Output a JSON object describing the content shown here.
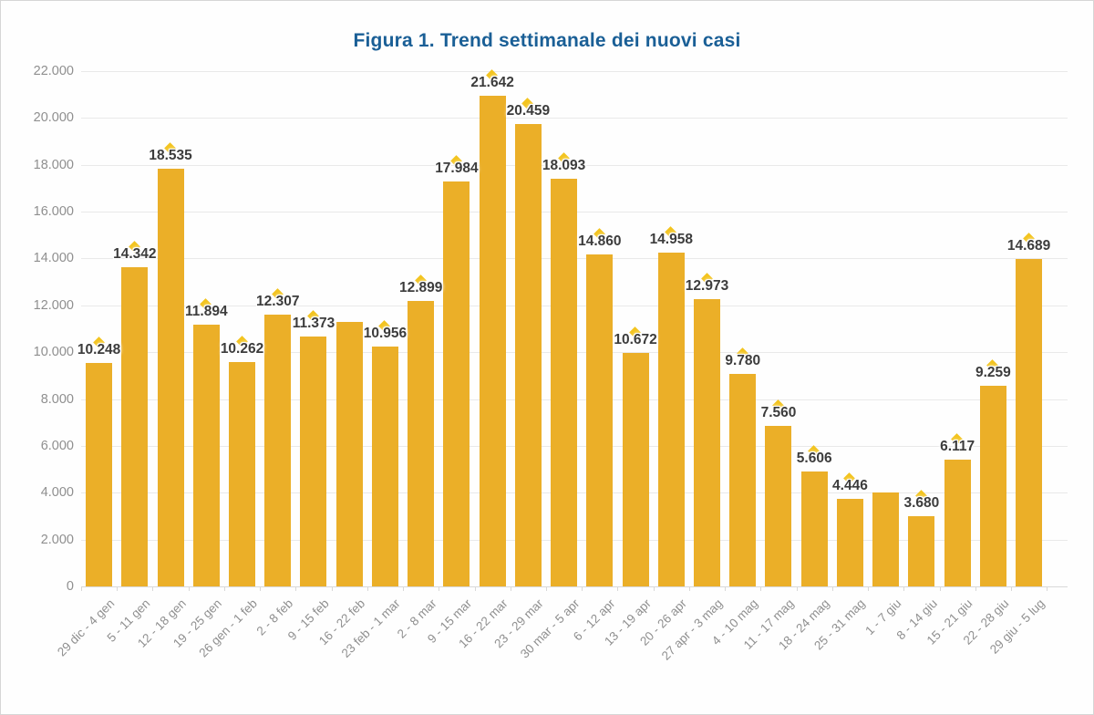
{
  "chart_data": {
    "type": "bar",
    "title": "Figura 1. Trend settimanale dei nuovi casi",
    "categories": [
      "29 dic - 4 gen",
      "5 - 11 gen",
      "12 - 18 gen",
      "19 - 25 gen",
      "26 gen - 1 feb",
      "2 - 8 feb",
      "9 - 15 feb",
      "16 - 22 feb",
      "23 feb - 1 mar",
      "2 - 8 mar",
      "9 - 15 mar",
      "16 - 22 mar",
      "23 - 29 mar",
      "30 mar - 5 apr",
      "6 - 12 apr",
      "13 - 19 apr",
      "20 - 26 apr",
      "27 apr - 3 mag",
      "4 - 10 mag",
      "11 - 17 mag",
      "18 - 24 mag",
      "25 - 31 mag",
      "1 - 7 giu",
      "8 - 14 giu",
      "15 - 21 giu",
      "22 - 28 giu",
      "29 giu - 5 lug"
    ],
    "values": [
      10248,
      14342,
      18535,
      11894,
      10262,
      12307,
      11373,
      12000,
      10956,
      12899,
      17984,
      21642,
      20459,
      18093,
      14860,
      10672,
      14958,
      12973,
      9780,
      7560,
      5606,
      4446,
      4700,
      3680,
      6117,
      9259,
      14689
    ],
    "data_labels": [
      "10.248",
      "14.342",
      "18.535",
      "11.894",
      "10.262",
      "12.307",
      "11.373",
      "",
      "10.956",
      "12.899",
      "17.984",
      "21.642",
      "20.459",
      "18.093",
      "14.860",
      "10.672",
      "14.958",
      "12.973",
      "9.780",
      "7.560",
      "5.606",
      "4.446",
      "",
      "3.680",
      "6.117",
      "9.259",
      "14.689"
    ],
    "ylabel": "",
    "xlabel": "",
    "ylim": [
      0,
      22000
    ],
    "ytick_step": 2000,
    "ytick_labels": [
      "0",
      "2.000",
      "4.000",
      "6.000",
      "8.000",
      "10.000",
      "12.000",
      "14.000",
      "16.000",
      "18.000",
      "20.000",
      "22.000"
    ],
    "grid": "horizontal",
    "legend": "none"
  },
  "colors": {
    "bar": "#ebaf28",
    "marker": "#f3c41f",
    "title": "#1a5f96",
    "axis_text": "#8f8f8f",
    "label_text": "#3c3c3c",
    "gridline": "#e9e9e9"
  }
}
